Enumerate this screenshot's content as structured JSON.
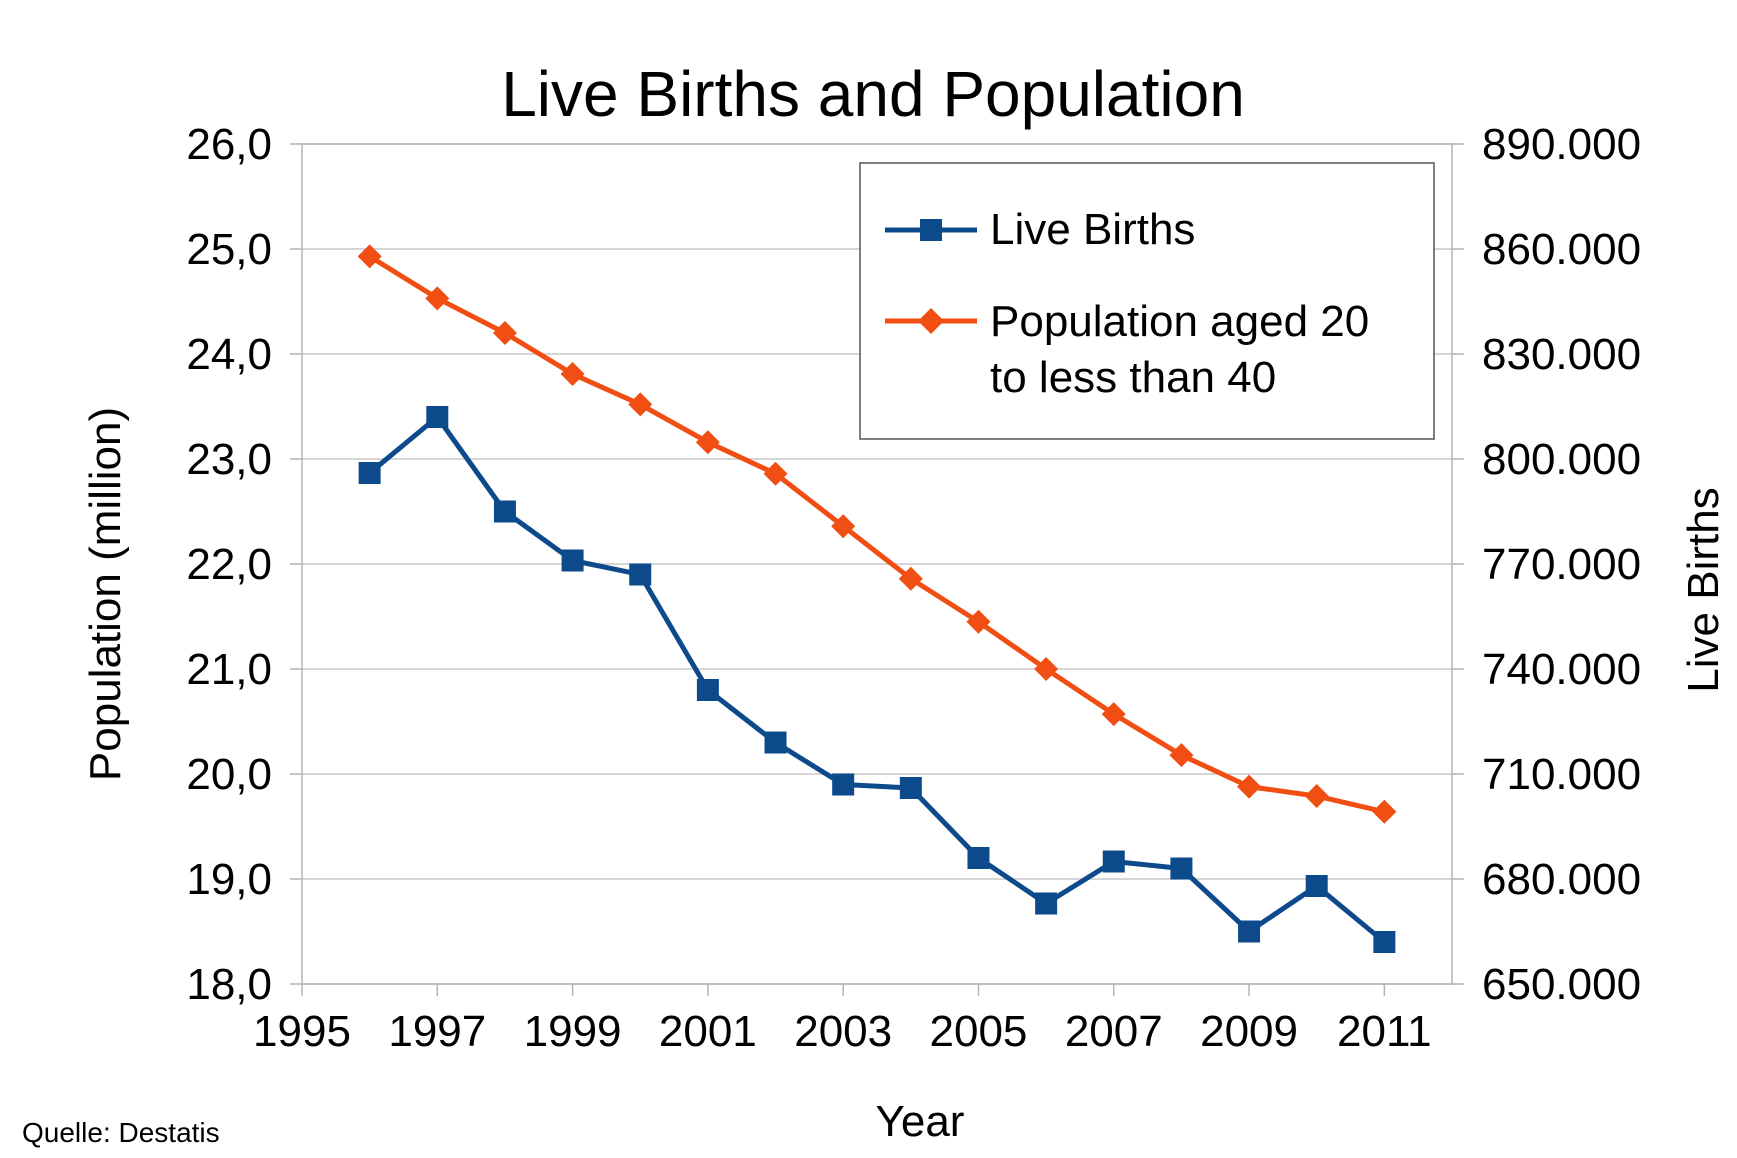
{
  "chart_data": {
    "type": "line",
    "title": "Live Births and Population",
    "xlabel": "Year",
    "ylabel_left": "Population (million)",
    "ylabel_right": "Live Births",
    "xlim": [
      1995,
      2012
    ],
    "x_ticks": [
      1995,
      1997,
      1999,
      2001,
      2003,
      2005,
      2007,
      2009,
      2011
    ],
    "ylim_left": [
      18,
      26
    ],
    "y_ticks_left": [
      "18,0",
      "19,0",
      "20,0",
      "21,0",
      "22,0",
      "23,0",
      "24,0",
      "25,0",
      "26,0"
    ],
    "ylim_right": [
      650000,
      890000
    ],
    "y_ticks_right": [
      "650.000",
      "680.000",
      "710.000",
      "740.000",
      "770.000",
      "800.000",
      "830.000",
      "860.000",
      "890.000"
    ],
    "grid": true,
    "legend_position": "top-right",
    "x": [
      1996,
      1997,
      1998,
      1999,
      2000,
      2001,
      2002,
      2003,
      2004,
      2005,
      2006,
      2007,
      2008,
      2009,
      2010,
      2011
    ],
    "series": [
      {
        "name": "Live Births",
        "axis": "right",
        "marker": "square",
        "color": "#0d4a8c",
        "values": [
          796000,
          812000,
          785000,
          771000,
          767000,
          734000,
          719000,
          707000,
          706000,
          686000,
          673000,
          685000,
          683000,
          665000,
          678000,
          662000
        ]
      },
      {
        "name": "Population aged 20 to less than 40",
        "legend_lines": [
          "Population aged 20",
          "to less than 40"
        ],
        "axis": "left",
        "marker": "diamond",
        "color": "#f04e12",
        "values": [
          24.93,
          24.53,
          24.2,
          23.81,
          23.52,
          23.16,
          22.86,
          22.36,
          21.86,
          21.45,
          21.0,
          20.57,
          20.18,
          19.88,
          19.79,
          19.64
        ]
      }
    ],
    "source": "Quelle: Destatis"
  }
}
